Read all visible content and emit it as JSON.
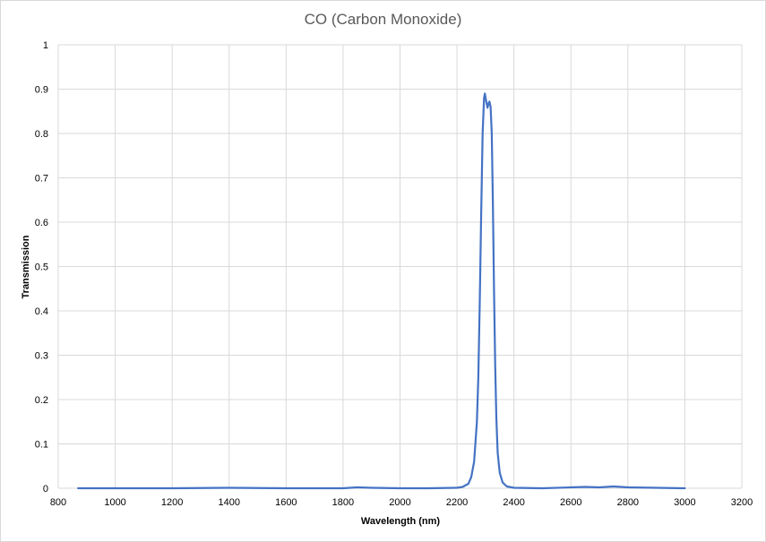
{
  "chart_data": {
    "type": "line",
    "title": "CO (Carbon Monoxide)",
    "xlabel": "Wavelength (nm)",
    "ylabel": "Transmission",
    "xlim": [
      800,
      3200
    ],
    "ylim": [
      0,
      1
    ],
    "xticks": [
      "800",
      "1000",
      "1200",
      "1400",
      "1600",
      "1800",
      "2000",
      "2200",
      "2400",
      "2600",
      "2800",
      "3000",
      "3200"
    ],
    "yticks": [
      "0",
      "0.1",
      "0.2",
      "0.3",
      "0.4",
      "0.5",
      "0.6",
      "0.7",
      "0.8",
      "0.9",
      "1"
    ],
    "grid": true,
    "legend": "none",
    "series": [
      {
        "color": "#4472c4",
        "points": [
          [
            870,
            0
          ],
          [
            1000,
            0
          ],
          [
            1200,
            0
          ],
          [
            1400,
            0.001
          ],
          [
            1600,
            0
          ],
          [
            1800,
            0
          ],
          [
            1850,
            0.002
          ],
          [
            1900,
            0.001
          ],
          [
            2000,
            0
          ],
          [
            2100,
            0
          ],
          [
            2200,
            0.001
          ],
          [
            2220,
            0.003
          ],
          [
            2240,
            0.01
          ],
          [
            2250,
            0.025
          ],
          [
            2260,
            0.06
          ],
          [
            2270,
            0.15
          ],
          [
            2275,
            0.25
          ],
          [
            2280,
            0.42
          ],
          [
            2285,
            0.62
          ],
          [
            2290,
            0.8
          ],
          [
            2295,
            0.88
          ],
          [
            2298,
            0.89
          ],
          [
            2302,
            0.875
          ],
          [
            2307,
            0.858
          ],
          [
            2311,
            0.868
          ],
          [
            2314,
            0.872
          ],
          [
            2318,
            0.86
          ],
          [
            2322,
            0.8
          ],
          [
            2326,
            0.65
          ],
          [
            2330,
            0.45
          ],
          [
            2334,
            0.28
          ],
          [
            2338,
            0.16
          ],
          [
            2343,
            0.08
          ],
          [
            2350,
            0.035
          ],
          [
            2360,
            0.013
          ],
          [
            2375,
            0.004
          ],
          [
            2400,
            0.001
          ],
          [
            2500,
            0
          ],
          [
            2600,
            0.002
          ],
          [
            2650,
            0.003
          ],
          [
            2700,
            0.002
          ],
          [
            2750,
            0.004
          ],
          [
            2800,
            0.002
          ],
          [
            2900,
            0.001
          ],
          [
            3000,
            0
          ]
        ]
      }
    ]
  }
}
